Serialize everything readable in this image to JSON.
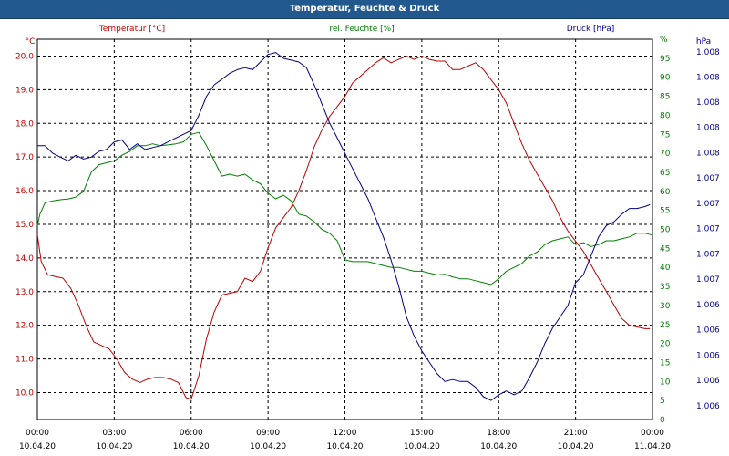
{
  "window": {
    "title": "Temperatur, Feuchte & Druck"
  },
  "colors": {
    "temperature": "#c00000",
    "humidity": "#008000",
    "pressure": "#00008b",
    "grid": "#000000",
    "titlebar": "#21598e"
  },
  "chart_data": {
    "type": "line",
    "title": "Temperatur, Feuchte & Druck",
    "grid": true,
    "x_ticks": [
      {
        "time": "00:00",
        "date": "10.04.20"
      },
      {
        "time": "03:00",
        "date": "10.04.20"
      },
      {
        "time": "06:00",
        "date": "10.04.20"
      },
      {
        "time": "09:00",
        "date": "10.04.20"
      },
      {
        "time": "12:00",
        "date": "10.04.20"
      },
      {
        "time": "15:00",
        "date": "10.04.20"
      },
      {
        "time": "18:00",
        "date": "10.04.20"
      },
      {
        "time": "21:00",
        "date": "10.04.20"
      },
      {
        "time": "00:00",
        "date": "11.04.20"
      }
    ],
    "xlim": [
      0,
      24
    ],
    "axes": {
      "left": {
        "unit": "°C",
        "ylim": [
          9.2,
          20.5
        ],
        "ticks": [
          "10.0",
          "11.0",
          "12.0",
          "13.0",
          "14.0",
          "15.0",
          "16.0",
          "17.0",
          "18.0",
          "19.0",
          "20.0"
        ],
        "tick_values": [
          10,
          11,
          12,
          13,
          14,
          15,
          16,
          17,
          18,
          19,
          20
        ]
      },
      "right1": {
        "unit": "%",
        "ylim": [
          0,
          100
        ],
        "ticks": [
          "0",
          "5",
          "10",
          "15",
          "20",
          "25",
          "30",
          "35",
          "40",
          "45",
          "50",
          "55",
          "60",
          "65",
          "70",
          "75",
          "80",
          "85",
          "90",
          "95",
          "%"
        ],
        "tick_values": [
          0,
          5,
          10,
          15,
          20,
          25,
          30,
          35,
          40,
          45,
          50,
          55,
          60,
          65,
          70,
          75,
          80,
          85,
          90,
          95,
          100
        ]
      },
      "right2": {
        "unit": "hPa",
        "ylim": [
          0,
          100
        ],
        "ticks": [
          "1.006",
          "1.006",
          "1.006",
          "1.006",
          "1.006",
          "1.007",
          "1.007",
          "1.007",
          "1.007",
          "1.007",
          "1.008",
          "1.008",
          "1.008",
          "1.008",
          "1.008"
        ],
        "tick_values": [
          3.6,
          10.3,
          16.9,
          23.6,
          30.2,
          36.9,
          43.5,
          50.2,
          56.8,
          63.5,
          70.1,
          76.8,
          83.4,
          90.1,
          96.7
        ]
      }
    },
    "series": [
      {
        "name": "Temperatur [°C]",
        "axis": "left",
        "x": [
          0,
          0.15,
          0.4,
          0.7,
          1.0,
          1.3,
          1.6,
          1.9,
          2.2,
          2.5,
          2.8,
          3.1,
          3.4,
          3.7,
          4.0,
          4.3,
          4.6,
          4.9,
          5.2,
          5.5,
          5.8,
          6.0,
          6.3,
          6.6,
          6.9,
          7.2,
          7.5,
          7.8,
          8.1,
          8.4,
          8.7,
          9.0,
          9.3,
          9.6,
          9.9,
          10.2,
          10.5,
          10.8,
          11.1,
          11.4,
          11.7,
          12.0,
          12.3,
          12.6,
          12.9,
          13.2,
          13.5,
          13.8,
          14.1,
          14.4,
          14.7,
          15.0,
          15.3,
          15.6,
          15.9,
          16.2,
          16.5,
          16.8,
          17.1,
          17.4,
          17.7,
          18.0,
          18.3,
          18.6,
          18.9,
          19.2,
          19.5,
          19.8,
          20.1,
          20.4,
          20.7,
          21.0,
          21.3,
          21.6,
          21.9,
          22.2,
          22.5,
          22.8,
          23.1,
          23.4,
          23.7,
          23.9
        ],
        "values": [
          14.7,
          13.9,
          13.5,
          13.45,
          13.4,
          13.1,
          12.6,
          12.0,
          11.5,
          11.4,
          11.3,
          11.0,
          10.6,
          10.4,
          10.3,
          10.4,
          10.45,
          10.45,
          10.4,
          10.3,
          9.85,
          9.8,
          10.5,
          11.6,
          12.4,
          12.9,
          12.95,
          13.0,
          13.4,
          13.3,
          13.6,
          14.3,
          14.9,
          15.2,
          15.5,
          16.0,
          16.6,
          17.3,
          17.8,
          18.2,
          18.5,
          18.8,
          19.2,
          19.4,
          19.6,
          19.8,
          19.95,
          19.8,
          19.9,
          20.0,
          19.9,
          20.0,
          19.9,
          19.85,
          19.85,
          19.6,
          19.6,
          19.7,
          19.8,
          19.6,
          19.3,
          19.0,
          18.6,
          18.0,
          17.4,
          16.9,
          16.5,
          16.1,
          15.7,
          15.2,
          14.8,
          14.5,
          14.2,
          13.8,
          13.4,
          13.0,
          12.6,
          12.2,
          12.0,
          11.95,
          11.9,
          11.9
        ],
        "color": "#c00000"
      },
      {
        "name": "rel. Feuchte [%]",
        "axis": "right1",
        "x": [
          0,
          0.1,
          0.3,
          0.6,
          0.9,
          1.2,
          1.5,
          1.8,
          2.1,
          2.4,
          2.7,
          3.0,
          3.3,
          3.6,
          3.9,
          4.2,
          4.5,
          4.8,
          5.1,
          5.4,
          5.7,
          6.0,
          6.3,
          6.6,
          6.9,
          7.2,
          7.5,
          7.8,
          8.1,
          8.4,
          8.7,
          9.0,
          9.3,
          9.6,
          9.9,
          10.2,
          10.5,
          10.8,
          11.1,
          11.4,
          11.7,
          12.0,
          12.3,
          12.6,
          12.9,
          13.2,
          13.5,
          13.8,
          14.1,
          14.4,
          14.7,
          15.0,
          15.3,
          15.6,
          15.9,
          16.2,
          16.5,
          16.8,
          17.1,
          17.4,
          17.7,
          18.0,
          18.3,
          18.6,
          18.9,
          19.2,
          19.5,
          19.8,
          20.1,
          20.4,
          20.7,
          21.0,
          21.3,
          21.6,
          21.9,
          22.2,
          22.5,
          22.8,
          23.1,
          23.4,
          23.7,
          24.0
        ],
        "values": [
          51,
          54,
          57,
          57.5,
          57.8,
          58,
          58.5,
          60,
          65,
          67,
          67.5,
          68,
          69.5,
          70.5,
          72,
          72,
          72.5,
          72,
          72.2,
          72.5,
          73,
          75,
          75.5,
          72,
          68,
          64,
          64.5,
          64,
          64.5,
          63,
          62,
          59.5,
          58,
          59,
          57.5,
          54,
          53.5,
          52,
          50,
          49,
          47,
          42,
          41.5,
          41.5,
          41.5,
          41,
          40.5,
          40,
          40,
          39.5,
          39,
          39,
          38.5,
          38,
          38.2,
          37.5,
          37,
          37,
          36.5,
          36,
          35.5,
          37,
          39,
          40,
          41,
          43,
          44,
          46,
          47,
          47.5,
          48,
          46,
          46.5,
          45.5,
          46,
          47,
          47,
          47.5,
          48,
          49,
          49,
          48.5
        ],
        "color": "#008000"
      },
      {
        "name": "Druck [hPa]",
        "axis": "right2",
        "x": [
          0,
          0.3,
          0.6,
          0.9,
          1.2,
          1.5,
          1.8,
          2.1,
          2.4,
          2.7,
          3.0,
          3.3,
          3.6,
          3.9,
          4.2,
          4.5,
          4.8,
          5.1,
          5.4,
          5.7,
          6.0,
          6.3,
          6.6,
          6.9,
          7.2,
          7.5,
          7.8,
          8.1,
          8.4,
          8.7,
          9.0,
          9.3,
          9.6,
          9.9,
          10.2,
          10.5,
          10.8,
          11.1,
          11.4,
          11.7,
          12.0,
          12.3,
          12.6,
          12.9,
          13.2,
          13.5,
          13.8,
          14.1,
          14.4,
          14.7,
          15.0,
          15.3,
          15.6,
          15.9,
          16.2,
          16.5,
          16.8,
          17.1,
          17.4,
          17.7,
          18.0,
          18.3,
          18.6,
          18.9,
          19.2,
          19.5,
          19.8,
          20.1,
          20.4,
          20.7,
          21.0,
          21.3,
          21.6,
          21.9,
          22.2,
          22.5,
          22.8,
          23.1,
          23.4,
          23.7,
          23.9
        ],
        "values": [
          72,
          72,
          70,
          69,
          68,
          69.5,
          68.5,
          69,
          70.5,
          71,
          73,
          73.5,
          71,
          72.5,
          71,
          71.5,
          72,
          73,
          74,
          75,
          76,
          80,
          85,
          88,
          89.5,
          91,
          92,
          92.5,
          92,
          94,
          96,
          96.5,
          95,
          94.5,
          94,
          92.5,
          88,
          83,
          78,
          74,
          70,
          66,
          62,
          58,
          53,
          48,
          42,
          35,
          27,
          22,
          18,
          15,
          12,
          10,
          10.5,
          10,
          10,
          8.5,
          6,
          5,
          6.5,
          7.5,
          6.5,
          7.5,
          11,
          15,
          20,
          24,
          27,
          30,
          36,
          38,
          43,
          48,
          51,
          52,
          54,
          55.5,
          55.5,
          56,
          56.5
        ],
        "color": "#00008b"
      }
    ]
  }
}
